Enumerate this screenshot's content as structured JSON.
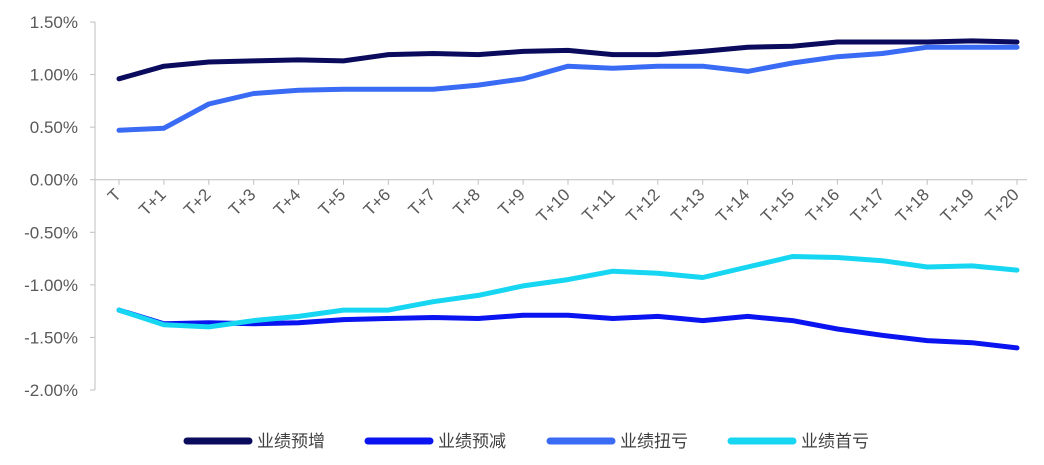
{
  "chart_data": {
    "type": "line",
    "categories": [
      "T",
      "T+1",
      "T+2",
      "T+3",
      "T+4",
      "T+5",
      "T+6",
      "T+7",
      "T+8",
      "T+9",
      "T+10",
      "T+11",
      "T+12",
      "T+13",
      "T+14",
      "T+15",
      "T+16",
      "T+17",
      "T+18",
      "T+19",
      "T+20"
    ],
    "y_ticks": [
      "1.50%",
      "1.00%",
      "0.50%",
      "0.00%",
      "-0.50%",
      "-1.00%",
      "-1.50%",
      "-2.00%"
    ],
    "ylim": [
      -0.02,
      0.015
    ],
    "legend_position": "bottom",
    "grid": false,
    "series": [
      {
        "name": "业绩预增",
        "color": "#0B0B5E",
        "values": [
          0.0096,
          0.0108,
          0.0112,
          0.0113,
          0.0114,
          0.0113,
          0.0119,
          0.012,
          0.0119,
          0.0122,
          0.0123,
          0.0119,
          0.0119,
          0.0122,
          0.0126,
          0.0127,
          0.0131,
          0.0131,
          0.0131,
          0.0132,
          0.0131
        ]
      },
      {
        "name": "业绩预减",
        "color": "#0A14F0",
        "values": [
          -0.0124,
          -0.0137,
          -0.0136,
          -0.0137,
          -0.0136,
          -0.0133,
          -0.0132,
          -0.0131,
          -0.0132,
          -0.0129,
          -0.0129,
          -0.0132,
          -0.013,
          -0.0134,
          -0.013,
          -0.0134,
          -0.0142,
          -0.0148,
          -0.0153,
          -0.0155,
          -0.016
        ]
      },
      {
        "name": "业绩扭亏",
        "color": "#3A6BF5",
        "values": [
          0.0047,
          0.0049,
          0.0072,
          0.0082,
          0.0085,
          0.0086,
          0.0086,
          0.0086,
          0.009,
          0.0096,
          0.0108,
          0.0106,
          0.0108,
          0.0108,
          0.0103,
          0.0111,
          0.0117,
          0.012,
          0.0126,
          0.0126,
          0.0126
        ]
      },
      {
        "name": "业绩首亏",
        "color": "#16D6F2",
        "values": [
          -0.0124,
          -0.0138,
          -0.014,
          -0.0134,
          -0.013,
          -0.0124,
          -0.0124,
          -0.0116,
          -0.011,
          -0.0101,
          -0.0095,
          -0.0087,
          -0.0089,
          -0.0093,
          -0.0083,
          -0.0073,
          -0.0074,
          -0.0077,
          -0.0083,
          -0.0082,
          -0.0086
        ]
      }
    ]
  }
}
